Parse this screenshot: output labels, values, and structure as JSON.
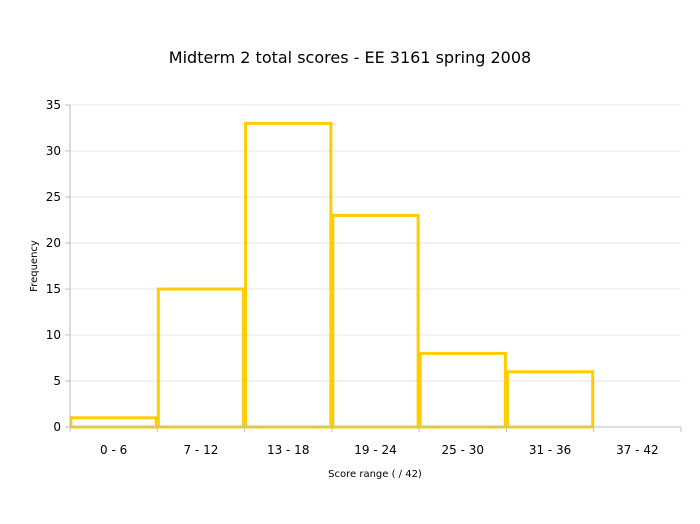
{
  "chart_data": {
    "type": "bar",
    "title": "Midterm 2 total scores - EE 3161 spring 2008",
    "xlabel": "Score range ( / 42)",
    "ylabel": "Frequency",
    "categories": [
      "0 - 6",
      "7 - 12",
      "13 - 18",
      "19 - 24",
      "25 - 30",
      "31 - 36",
      "37 - 42"
    ],
    "values": [
      1,
      15,
      33,
      23,
      8,
      6,
      0
    ],
    "ylim": [
      0,
      35
    ],
    "yticks": [
      0,
      5,
      10,
      15,
      20,
      25,
      30,
      35
    ],
    "grid": true,
    "legend": "none",
    "bar_style": "outline",
    "bar_color": "#FFCC00",
    "grid_color": "#E6E6E6",
    "axis_color": "#BFBFBF"
  }
}
